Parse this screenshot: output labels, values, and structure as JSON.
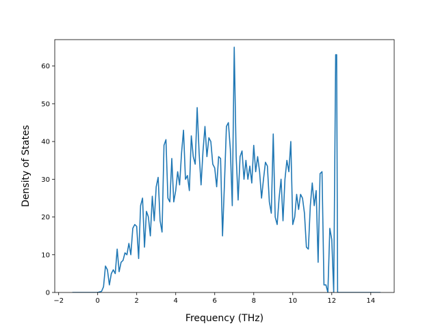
{
  "chart_data": {
    "type": "line",
    "title": "",
    "xlabel": "Frequency (THz)",
    "ylabel": "Density of States",
    "xlim": [
      -2.2,
      15.2
    ],
    "ylim": [
      0,
      67
    ],
    "x_ticks": [
      -2,
      0,
      2,
      4,
      6,
      8,
      10,
      12,
      14
    ],
    "y_ticks": [
      0,
      10,
      20,
      30,
      40,
      50,
      60
    ],
    "grid": false,
    "line_color": "#1f77b4",
    "series": [
      {
        "x": [
          -1.3,
          -1.0,
          -0.5,
          0.0,
          0.2,
          0.3,
          0.4,
          0.5,
          0.6,
          0.7,
          0.8,
          0.9,
          1.0,
          1.1,
          1.2,
          1.3,
          1.4,
          1.5,
          1.6,
          1.7,
          1.8,
          1.9,
          2.0,
          2.1,
          2.2,
          2.3,
          2.4,
          2.5,
          2.6,
          2.7,
          2.8,
          2.9,
          3.0,
          3.1,
          3.2,
          3.3,
          3.4,
          3.5,
          3.6,
          3.7,
          3.8,
          3.9,
          4.0,
          4.1,
          4.2,
          4.3,
          4.4,
          4.5,
          4.6,
          4.7,
          4.8,
          4.9,
          5.0,
          5.1,
          5.2,
          5.3,
          5.4,
          5.5,
          5.6,
          5.7,
          5.8,
          5.9,
          6.0,
          6.1,
          6.2,
          6.3,
          6.4,
          6.5,
          6.6,
          6.7,
          6.8,
          6.9,
          7.0,
          7.1,
          7.2,
          7.3,
          7.4,
          7.5,
          7.6,
          7.7,
          7.8,
          7.9,
          8.0,
          8.1,
          8.2,
          8.3,
          8.4,
          8.5,
          8.6,
          8.7,
          8.8,
          8.9,
          9.0,
          9.1,
          9.2,
          9.3,
          9.4,
          9.5,
          9.6,
          9.7,
          9.8,
          9.9,
          10.0,
          10.1,
          10.2,
          10.3,
          10.4,
          10.5,
          10.6,
          10.7,
          10.8,
          10.9,
          11.0,
          11.1,
          11.2,
          11.3,
          11.4,
          11.5,
          11.6,
          11.7,
          11.8,
          11.9,
          12.0,
          12.1,
          12.2,
          12.25,
          12.3,
          12.4,
          12.5,
          13.0,
          13.5,
          14.0,
          14.5
        ],
        "y": [
          0,
          0,
          0,
          0,
          0.3,
          1.5,
          7,
          6,
          2,
          5,
          6,
          5,
          11.5,
          5.5,
          8,
          8.5,
          10.5,
          10,
          13,
          10,
          17,
          18,
          17.5,
          9,
          23,
          25,
          12,
          21.5,
          20,
          15,
          25.5,
          19,
          28,
          30.5,
          19,
          16,
          39,
          40.5,
          25,
          24,
          35.5,
          24,
          27,
          32,
          28.5,
          37,
          43,
          30,
          31,
          27,
          41.5,
          36,
          34,
          49,
          37,
          28.5,
          37.5,
          44,
          36,
          41,
          40,
          34,
          33,
          28,
          36,
          35.5,
          15,
          29,
          44,
          45,
          38,
          23,
          65,
          36,
          24.5,
          36,
          37.5,
          30,
          35,
          30,
          33.5,
          29,
          39,
          32,
          36,
          32,
          25,
          30,
          34.5,
          33.5,
          24,
          21,
          42,
          20,
          18,
          25,
          30,
          19,
          30,
          35,
          32,
          40,
          18,
          20,
          26,
          22,
          26,
          25,
          21,
          12,
          11.5,
          23,
          29,
          23,
          27,
          8,
          31.5,
          32,
          2,
          2,
          0,
          17,
          14,
          0,
          63,
          63,
          0,
          0,
          0,
          0,
          0,
          0,
          0
        ]
      }
    ]
  }
}
